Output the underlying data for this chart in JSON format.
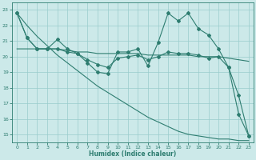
{
  "xlabel": "Humidex (Indice chaleur)",
  "bg_color": "#cce9e9",
  "grid_color": "#99cccc",
  "line_color": "#2e7d70",
  "xlim": [
    -0.5,
    23.5
  ],
  "ylim": [
    14.5,
    23.5
  ],
  "xticks": [
    0,
    1,
    2,
    3,
    4,
    5,
    6,
    7,
    8,
    9,
    10,
    11,
    12,
    13,
    14,
    15,
    16,
    17,
    18,
    19,
    20,
    21,
    22,
    23
  ],
  "yticks": [
    15,
    16,
    17,
    18,
    19,
    20,
    21,
    22,
    23
  ],
  "line_wavy_x": [
    0,
    1,
    2,
    3,
    4,
    5,
    6,
    7,
    8,
    9,
    10,
    11,
    12,
    13,
    14,
    15,
    16,
    17,
    18,
    19,
    20,
    21,
    22,
    23
  ],
  "line_wavy_y": [
    22.8,
    21.2,
    20.5,
    20.5,
    21.1,
    20.5,
    20.2,
    19.6,
    19.0,
    18.9,
    20.3,
    20.3,
    20.5,
    19.4,
    20.9,
    22.8,
    22.3,
    22.8,
    21.8,
    21.4,
    20.5,
    19.3,
    17.5,
    14.9
  ],
  "line_flat_x": [
    0,
    1,
    2,
    3,
    4,
    5,
    6,
    7,
    8,
    9,
    10,
    11,
    12,
    13,
    14,
    15,
    16,
    17,
    18,
    19,
    20,
    21,
    22,
    23
  ],
  "line_flat_y": [
    20.5,
    20.5,
    20.5,
    20.5,
    20.5,
    20.4,
    20.3,
    20.3,
    20.2,
    20.2,
    20.2,
    20.2,
    20.2,
    20.1,
    20.1,
    20.1,
    20.1,
    20.1,
    20.0,
    20.0,
    20.0,
    19.9,
    19.8,
    19.7
  ],
  "line_diag_x": [
    0,
    1,
    2,
    3,
    4,
    5,
    6,
    7,
    8,
    9,
    10,
    11,
    12,
    13,
    14,
    15,
    16,
    17,
    18,
    19,
    20,
    21,
    22,
    23
  ],
  "line_diag_y": [
    22.8,
    22.0,
    21.3,
    20.7,
    20.1,
    19.6,
    19.1,
    18.6,
    18.1,
    17.7,
    17.3,
    16.9,
    16.5,
    16.1,
    15.8,
    15.5,
    15.2,
    15.0,
    14.9,
    14.8,
    14.7,
    14.7,
    14.6,
    14.6
  ],
  "line_med_x": [
    0,
    1,
    2,
    3,
    4,
    5,
    6,
    7,
    8,
    9,
    10,
    11,
    12,
    13,
    14,
    15,
    16,
    17,
    18,
    19,
    20,
    21,
    22,
    23
  ],
  "line_med_y": [
    22.8,
    21.2,
    20.5,
    20.5,
    20.5,
    20.3,
    20.2,
    19.8,
    19.5,
    19.3,
    19.9,
    20.0,
    20.1,
    19.8,
    20.0,
    20.3,
    20.2,
    20.2,
    20.1,
    19.9,
    20.0,
    19.3,
    16.3,
    14.9
  ]
}
